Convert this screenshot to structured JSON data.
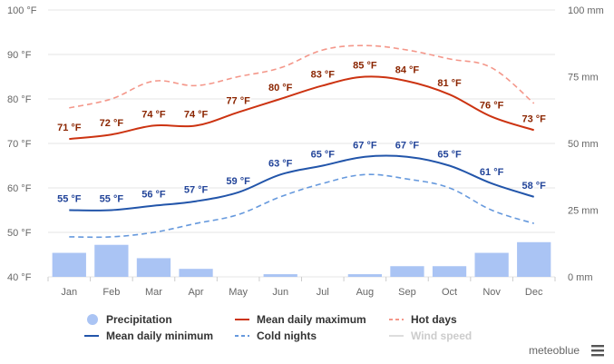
{
  "chart_data": {
    "type": "line",
    "categories": [
      "Jan",
      "Feb",
      "Mar",
      "Apr",
      "May",
      "Jun",
      "Jul",
      "Aug",
      "Sep",
      "Oct",
      "Nov",
      "Dec"
    ],
    "y_left": {
      "min": 40,
      "max": 100,
      "ticks": [
        40,
        50,
        60,
        70,
        80,
        90,
        100
      ],
      "unit": "°F"
    },
    "y_right": {
      "min": 0,
      "max": 100,
      "ticks": [
        0,
        25,
        50,
        75,
        100
      ],
      "unit": "mm"
    },
    "series": [
      {
        "name": "Mean daily maximum",
        "axis": "left",
        "style": "solid",
        "color": "#cc3311",
        "label_color": "#8b2500",
        "show_labels": true,
        "values": [
          71,
          72,
          74,
          74,
          77,
          80,
          83,
          85,
          84,
          81,
          76,
          73
        ]
      },
      {
        "name": "Mean daily minimum",
        "axis": "left",
        "style": "solid",
        "color": "#2255aa",
        "label_color": "#224499",
        "show_labels": true,
        "values": [
          55,
          55,
          56,
          57,
          59,
          63,
          65,
          67,
          67,
          65,
          61,
          58
        ]
      },
      {
        "name": "Hot days",
        "axis": "left",
        "style": "dashed",
        "color": "#f4978a",
        "show_labels": false,
        "values": [
          78,
          80,
          84,
          83,
          85,
          87,
          91,
          92,
          91,
          89,
          87,
          79
        ]
      },
      {
        "name": "Cold nights",
        "axis": "left",
        "style": "dashed",
        "color": "#6699dd",
        "show_labels": false,
        "values": [
          49,
          49,
          50,
          52,
          54,
          58,
          61,
          63,
          62,
          60,
          55,
          52
        ]
      }
    ],
    "bars": {
      "name": "Precipitation",
      "axis": "right",
      "color": "#aac4f4",
      "values": [
        9,
        12,
        7,
        3,
        0,
        1,
        0,
        1,
        4,
        4,
        9,
        13
      ]
    },
    "legend": [
      {
        "name": "Precipitation",
        "marker": "circle",
        "color": "#aac4f4",
        "muted": false
      },
      {
        "name": "Mean daily maximum",
        "marker": "line",
        "color": "#cc3311",
        "muted": false
      },
      {
        "name": "Hot days",
        "marker": "dashed",
        "color": "#f4978a",
        "muted": false
      },
      {
        "name": "Mean daily minimum",
        "marker": "line",
        "color": "#2255aa",
        "muted": false
      },
      {
        "name": "Cold nights",
        "marker": "dashed",
        "color": "#6699dd",
        "muted": false
      },
      {
        "name": "Wind speed",
        "marker": "line",
        "color": "#dddddd",
        "muted": true
      }
    ],
    "legend_position": "bottom",
    "grid": true
  },
  "branding": {
    "text": "meteoblue",
    "menu_icon": "hamburger-menu-icon"
  }
}
